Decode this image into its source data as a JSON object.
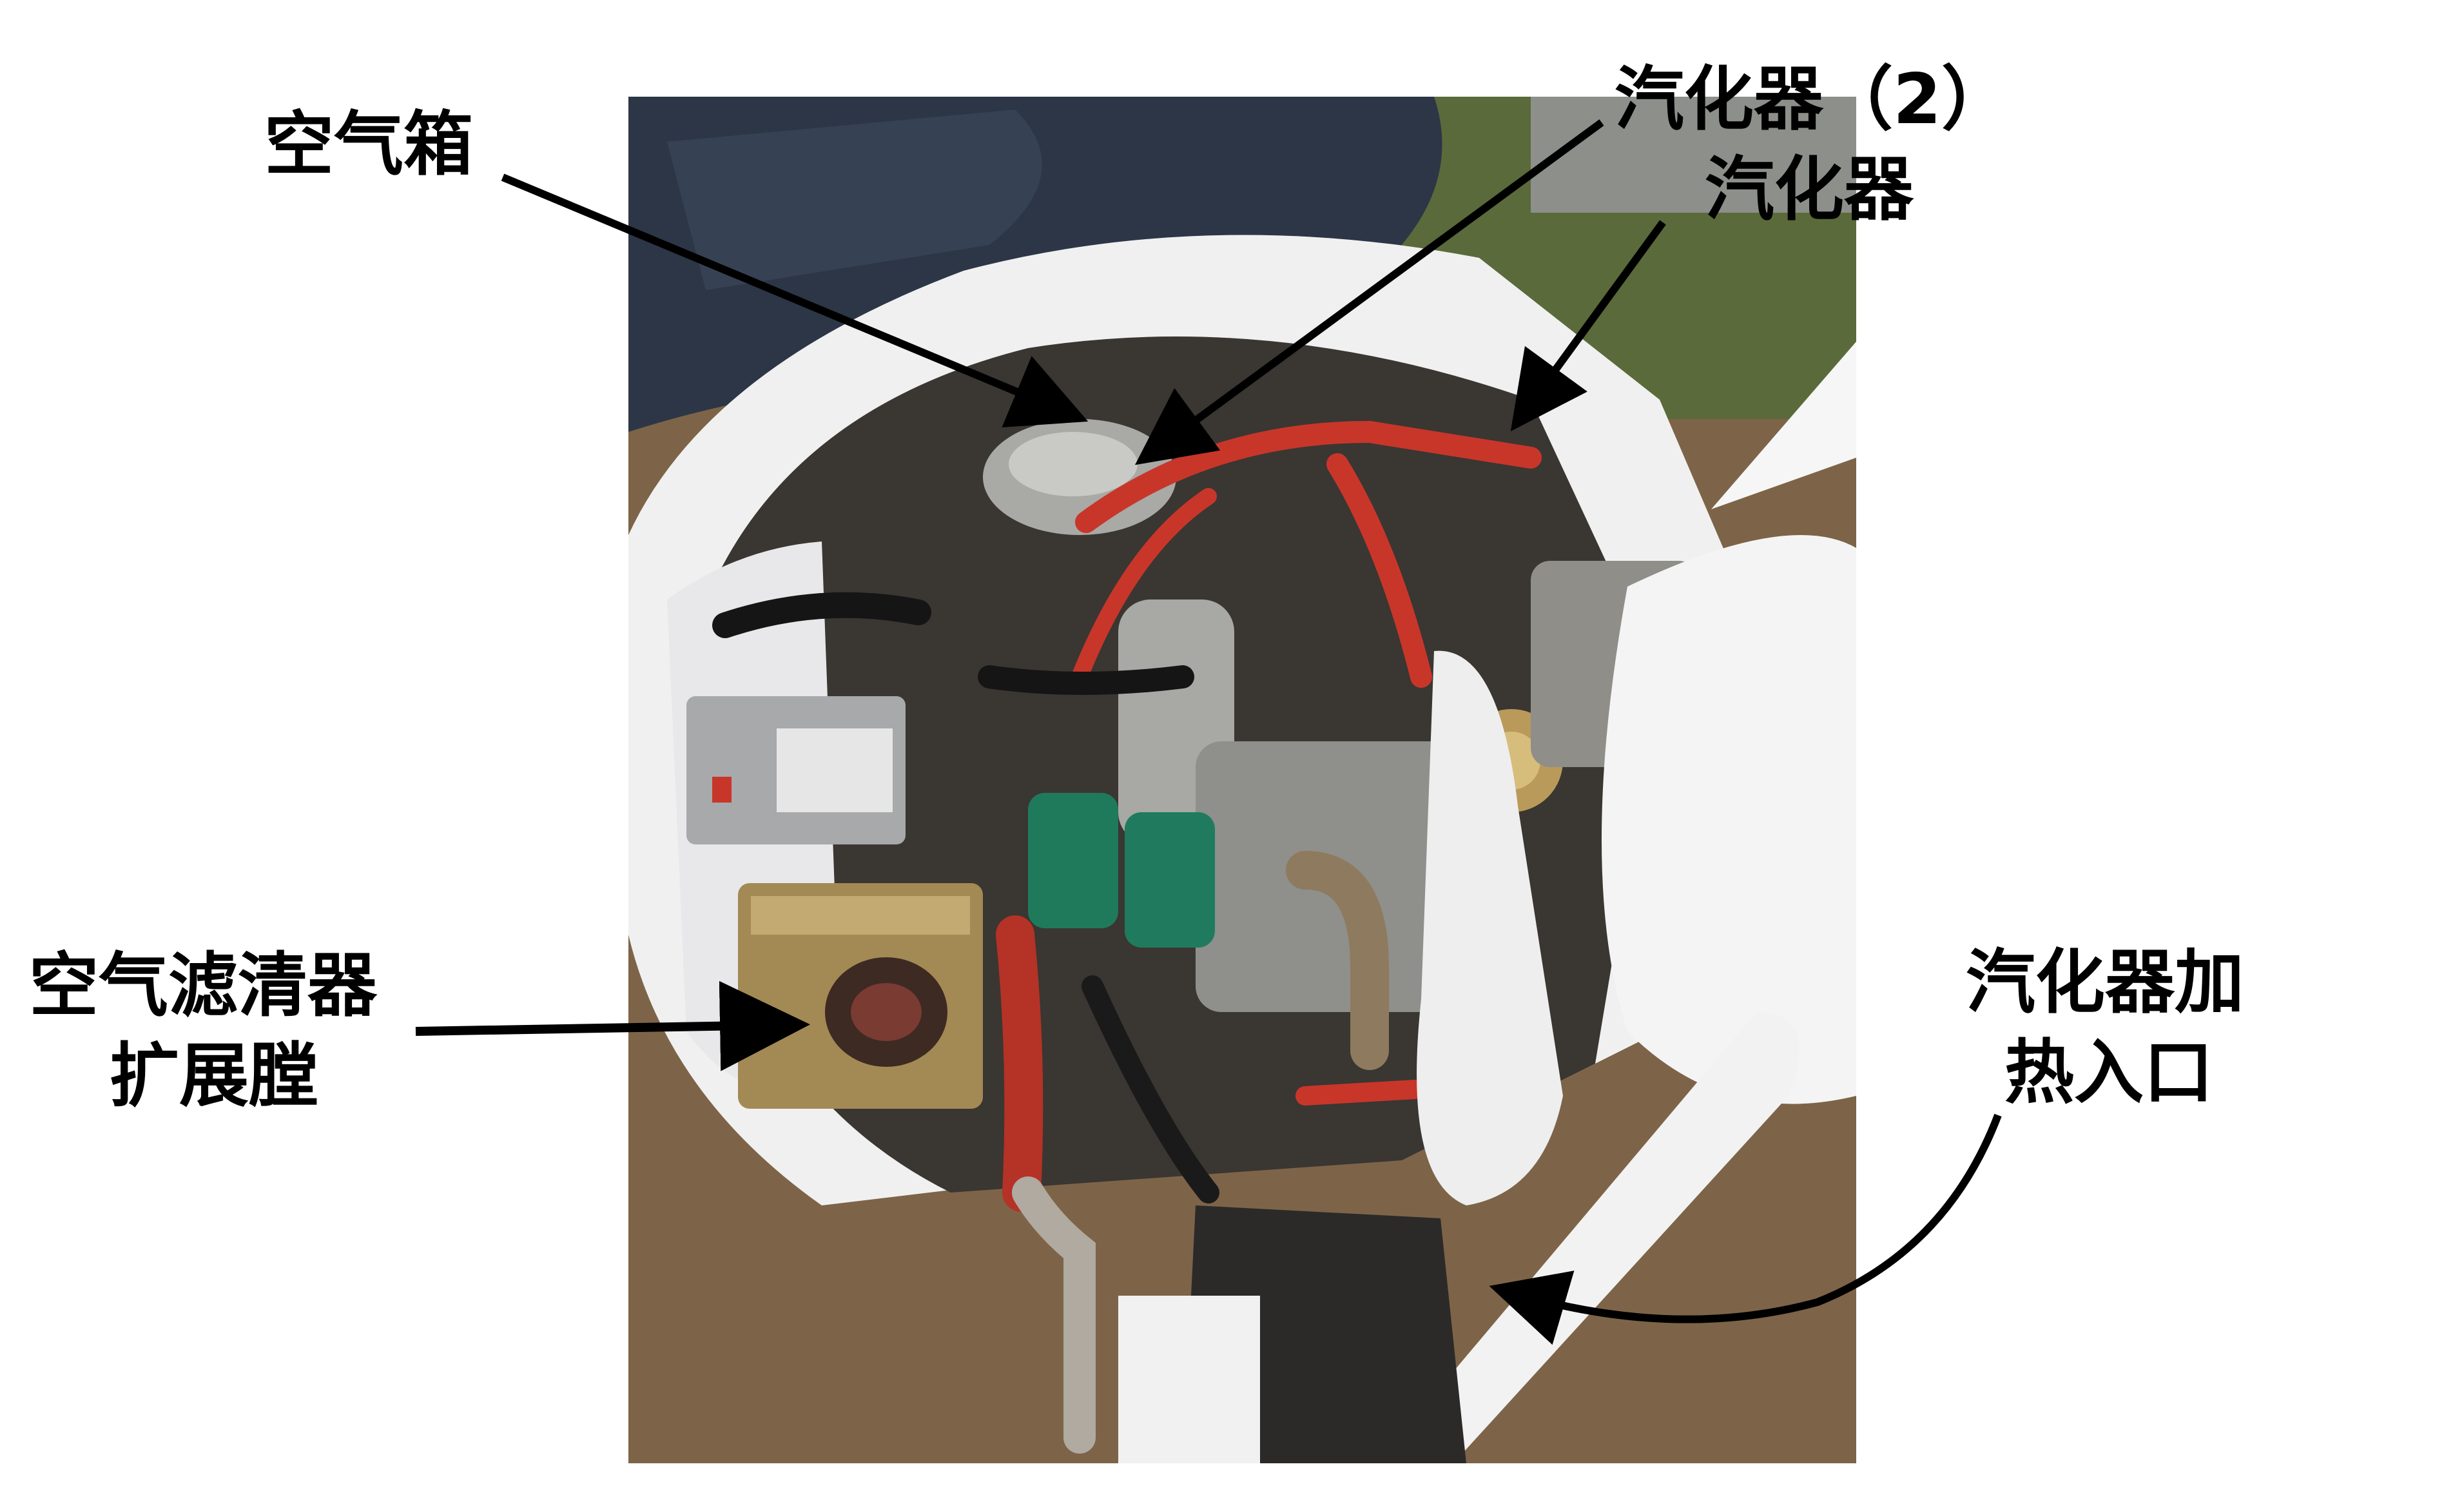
{
  "labels": {
    "air_box": "空气箱",
    "carburetor_2": "汽化器（2）",
    "carburetor": "汽化器",
    "air_filter_line1": "空气滤清器",
    "air_filter_line2": "扩展膛",
    "carb_heat_line1": "汽化器加",
    "carb_heat_line2": "热入口"
  },
  "colors": {
    "label_text": "#000000",
    "arrow": "#000000",
    "hose_red": "#c8362a",
    "carb_green": "#1f7a5c",
    "cowling_white": "#f2f2f2",
    "ground": "#8a6a48"
  }
}
